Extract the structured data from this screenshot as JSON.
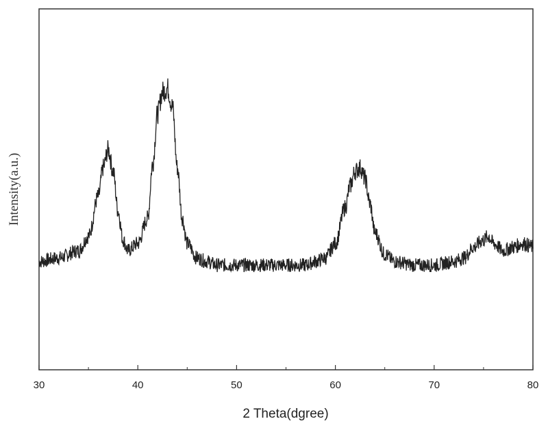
{
  "chart_data": {
    "type": "line",
    "title": "",
    "xlabel": "2 Theta(dgree)",
    "ylabel": "Intensity(a.u.)",
    "xlim": [
      30,
      80
    ],
    "ylim": [
      0,
      1
    ],
    "x_ticks": [
      30,
      40,
      50,
      60,
      70,
      80
    ],
    "x_tick_labels": [
      "30",
      "40",
      "50",
      "60",
      "70",
      "80"
    ],
    "x_minor_ticks": [
      35,
      45,
      55,
      65,
      75
    ],
    "y_ticks_shown": false,
    "grid": false,
    "legend": "none",
    "line_color": "#222222",
    "series": [
      {
        "x": [
          30,
          32,
          34,
          35,
          36,
          36.5,
          37,
          37.5,
          38,
          38.5,
          39,
          40,
          41,
          41.5,
          42,
          42.5,
          43,
          43.5,
          44,
          44.5,
          45,
          46,
          47,
          48,
          50,
          52,
          55,
          57,
          58,
          59,
          60,
          61,
          61.5,
          62,
          62.5,
          63,
          63.5,
          64,
          65,
          66,
          68,
          70,
          72,
          73,
          74,
          75,
          75.5,
          76,
          77,
          78,
          79,
          80
        ],
        "y": [
          0.3,
          0.31,
          0.33,
          0.37,
          0.48,
          0.56,
          0.61,
          0.55,
          0.44,
          0.36,
          0.33,
          0.35,
          0.42,
          0.57,
          0.71,
          0.77,
          0.78,
          0.73,
          0.56,
          0.42,
          0.35,
          0.31,
          0.3,
          0.29,
          0.29,
          0.29,
          0.29,
          0.29,
          0.3,
          0.31,
          0.35,
          0.45,
          0.51,
          0.55,
          0.56,
          0.53,
          0.46,
          0.38,
          0.32,
          0.3,
          0.29,
          0.29,
          0.3,
          0.31,
          0.34,
          0.36,
          0.37,
          0.35,
          0.33,
          0.34,
          0.35,
          0.34
        ]
      }
    ]
  }
}
